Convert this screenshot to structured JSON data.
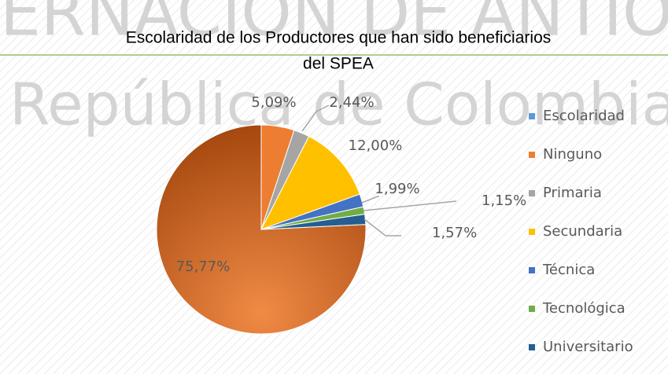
{
  "chart_data": {
    "type": "pie",
    "watermark": [
      "ERNACION DE ANTIO",
      "República de Colombia"
    ],
    "title_lines": [
      "Escolaridad de los Productores que han sido beneficiarios",
      "del SPEA"
    ],
    "categories": [
      "Escolaridad",
      "Ninguno",
      "Primaria",
      "Secundaria",
      "Técnica",
      "Tecnológica",
      "Universitario"
    ],
    "values": [
      75.77,
      5.09,
      2.44,
      12.0,
      1.99,
      1.15,
      1.57
    ],
    "value_labels": [
      "75,77%",
      "5,09%",
      "2,44%",
      "12,00%",
      "1,99%",
      "1,15%",
      "1,57%"
    ],
    "colors": [
      "#d9732f",
      "#ed7d31",
      "#a5a5a5",
      "#ffc000",
      "#4472c4",
      "#70ad47",
      "#255e91"
    ],
    "legend_colors": [
      "#5b9bd5",
      "#ed7d31",
      "#a5a5a5",
      "#ffc000",
      "#4472c4",
      "#70ad47",
      "#255e91"
    ],
    "legend": "right"
  }
}
